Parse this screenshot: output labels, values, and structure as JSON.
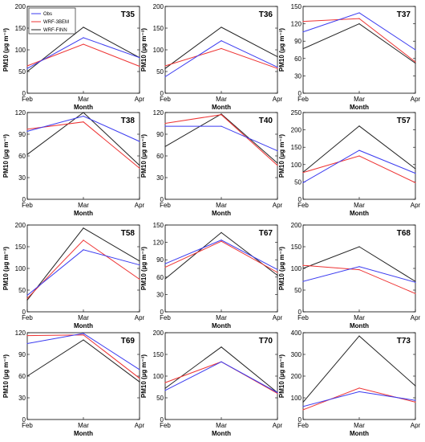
{
  "figure": {
    "background": "#ffffff"
  },
  "legend": {
    "entries": [
      {
        "name": "Obs",
        "color": "#3b3bf0"
      },
      {
        "name": "WRF-3BEM",
        "color": "#ee3333"
      },
      {
        "name": "WRF-FINN",
        "color": "#222222"
      }
    ]
  },
  "chart_data": [
    {
      "type": "line",
      "title": "T35",
      "categories": [
        "Feb",
        "Mar",
        "Apr"
      ],
      "xlabel": "Month",
      "ylabel": "PM10 (µg m⁻³)",
      "ylim": [
        0,
        200
      ],
      "yticks": [
        0,
        50,
        100,
        150,
        200
      ],
      "series": [
        {
          "name": "Obs",
          "values": [
            57,
            128,
            82
          ]
        },
        {
          "name": "WRF-3BEM",
          "values": [
            63,
            113,
            62
          ]
        },
        {
          "name": "WRF-FINN",
          "values": [
            50,
            152,
            82
          ]
        }
      ]
    },
    {
      "type": "line",
      "title": "T36",
      "categories": [
        "Feb",
        "Mar",
        "Apr"
      ],
      "xlabel": "Month",
      "ylabel": "PM10 (µg m⁻³)",
      "ylim": [
        0,
        200
      ],
      "yticks": [
        0,
        50,
        100,
        150,
        200
      ],
      "series": [
        {
          "name": "Obs",
          "values": [
            38,
            121,
            60
          ]
        },
        {
          "name": "WRF-3BEM",
          "values": [
            63,
            103,
            57
          ]
        },
        {
          "name": "WRF-FINN",
          "values": [
            57,
            152,
            84
          ]
        }
      ]
    },
    {
      "type": "line",
      "title": "T37",
      "categories": [
        "Feb",
        "Mar",
        "Apr"
      ],
      "xlabel": "Month",
      "ylabel": "PM10 (µg m⁻³)",
      "ylim": [
        0,
        150
      ],
      "yticks": [
        0,
        30,
        60,
        90,
        120,
        150
      ],
      "series": [
        {
          "name": "Obs",
          "values": [
            106,
            139,
            75
          ]
        },
        {
          "name": "WRF-3BEM",
          "values": [
            124,
            129,
            54
          ]
        },
        {
          "name": "WRF-FINN",
          "values": [
            77,
            120,
            52
          ]
        }
      ]
    },
    {
      "type": "line",
      "title": "T38",
      "categories": [
        "Feb",
        "Mar",
        "Apr"
      ],
      "xlabel": "Month",
      "ylabel": "PM10 (µg m⁻³)",
      "ylim": [
        0,
        120
      ],
      "yticks": [
        0,
        30,
        60,
        90,
        120
      ],
      "series": [
        {
          "name": "Obs",
          "values": [
            94,
            115,
            80
          ]
        },
        {
          "name": "WRF-3BEM",
          "values": [
            97,
            107,
            43
          ]
        },
        {
          "name": "WRF-FINN",
          "values": [
            62,
            120,
            47
          ]
        }
      ]
    },
    {
      "type": "line",
      "title": "T40",
      "categories": [
        "Feb",
        "Mar",
        "Apr"
      ],
      "xlabel": "Month",
      "ylabel": "PM10 (µg m⁻³)",
      "ylim": [
        0,
        120
      ],
      "yticks": [
        0,
        30,
        60,
        90,
        120
      ],
      "series": [
        {
          "name": "Obs",
          "values": [
            101,
            101,
            67
          ]
        },
        {
          "name": "WRF-3BEM",
          "values": [
            105,
            117,
            47
          ]
        },
        {
          "name": "WRF-FINN",
          "values": [
            73,
            118,
            50
          ]
        }
      ]
    },
    {
      "type": "line",
      "title": "T57",
      "categories": [
        "Feb",
        "Mar",
        "Apr"
      ],
      "xlabel": "Month",
      "ylabel": "PM10 (µg m⁻³)",
      "ylim": [
        0,
        250
      ],
      "yticks": [
        0,
        50,
        100,
        150,
        200,
        250
      ],
      "series": [
        {
          "name": "Obs",
          "values": [
            48,
            141,
            75
          ]
        },
        {
          "name": "WRF-3BEM",
          "values": [
            77,
            125,
            48
          ]
        },
        {
          "name": "WRF-FINN",
          "values": [
            78,
            211,
            88
          ]
        }
      ]
    },
    {
      "type": "line",
      "title": "T58",
      "categories": [
        "Feb",
        "Mar",
        "Apr"
      ],
      "xlabel": "Month",
      "ylabel": "PM10 (µg m⁻³)",
      "ylim": [
        0,
        200
      ],
      "yticks": [
        0,
        50,
        100,
        150,
        200
      ],
      "series": [
        {
          "name": "Obs",
          "values": [
            38,
            143,
            108
          ]
        },
        {
          "name": "WRF-3BEM",
          "values": [
            31,
            165,
            75
          ]
        },
        {
          "name": "WRF-FINN",
          "values": [
            27,
            193,
            117
          ]
        }
      ]
    },
    {
      "type": "line",
      "title": "T67",
      "categories": [
        "Feb",
        "Mar",
        "Apr"
      ],
      "xlabel": "Month",
      "ylabel": "PM10 (µg m⁻³)",
      "ylim": [
        0,
        150
      ],
      "yticks": [
        0,
        30,
        60,
        90,
        120,
        150
      ],
      "series": [
        {
          "name": "Obs",
          "values": [
            83,
            124,
            73
          ]
        },
        {
          "name": "WRF-3BEM",
          "values": [
            77,
            122,
            68
          ]
        },
        {
          "name": "WRF-FINN",
          "values": [
            57,
            137,
            63
          ]
        }
      ]
    },
    {
      "type": "line",
      "title": "T68",
      "categories": [
        "Feb",
        "Mar",
        "Apr"
      ],
      "xlabel": "Month",
      "ylabel": "PM10 (µg m⁻³)",
      "ylim": [
        0,
        200
      ],
      "yticks": [
        0,
        50,
        100,
        150,
        200
      ],
      "series": [
        {
          "name": "Obs",
          "values": [
            70,
            104,
            68
          ]
        },
        {
          "name": "WRF-3BEM",
          "values": [
            107,
            97,
            42
          ]
        },
        {
          "name": "WRF-FINN",
          "values": [
            100,
            150,
            70
          ]
        }
      ]
    },
    {
      "type": "line",
      "title": "T69",
      "categories": [
        "Feb",
        "Mar",
        "Apr"
      ],
      "xlabel": "Month",
      "ylabel": "PM10 (µg m⁻³)",
      "ylim": [
        0,
        120
      ],
      "yticks": [
        0,
        30,
        60,
        90,
        120
      ],
      "series": [
        {
          "name": "Obs",
          "values": [
            105,
            119,
            69
          ]
        },
        {
          "name": "WRF-3BEM",
          "values": [
            116,
            117,
            57
          ]
        },
        {
          "name": "WRF-FINN",
          "values": [
            60,
            110,
            52
          ]
        }
      ]
    },
    {
      "type": "line",
      "title": "T70",
      "categories": [
        "Feb",
        "Mar",
        "Apr"
      ],
      "xlabel": "Month",
      "ylabel": "PM10 (µg m⁻³)",
      "ylim": [
        0,
        200
      ],
      "yticks": [
        0,
        50,
        100,
        150,
        200
      ],
      "series": [
        {
          "name": "Obs",
          "values": [
            67,
            133,
            62
          ]
        },
        {
          "name": "WRF-3BEM",
          "values": [
            85,
            133,
            60
          ]
        },
        {
          "name": "WRF-FINN",
          "values": [
            72,
            167,
            62
          ]
        }
      ]
    },
    {
      "type": "line",
      "title": "T73",
      "categories": [
        "Feb",
        "Mar",
        "Apr"
      ],
      "xlabel": "Month",
      "ylabel": "PM10 (µg m⁻³)",
      "ylim": [
        0,
        400
      ],
      "yticks": [
        0,
        100,
        200,
        300,
        400
      ],
      "series": [
        {
          "name": "Obs",
          "values": [
            60,
            128,
            88
          ]
        },
        {
          "name": "WRF-3BEM",
          "values": [
            45,
            145,
            80
          ]
        },
        {
          "name": "WRF-FINN",
          "values": [
            80,
            385,
            155
          ]
        }
      ]
    }
  ]
}
